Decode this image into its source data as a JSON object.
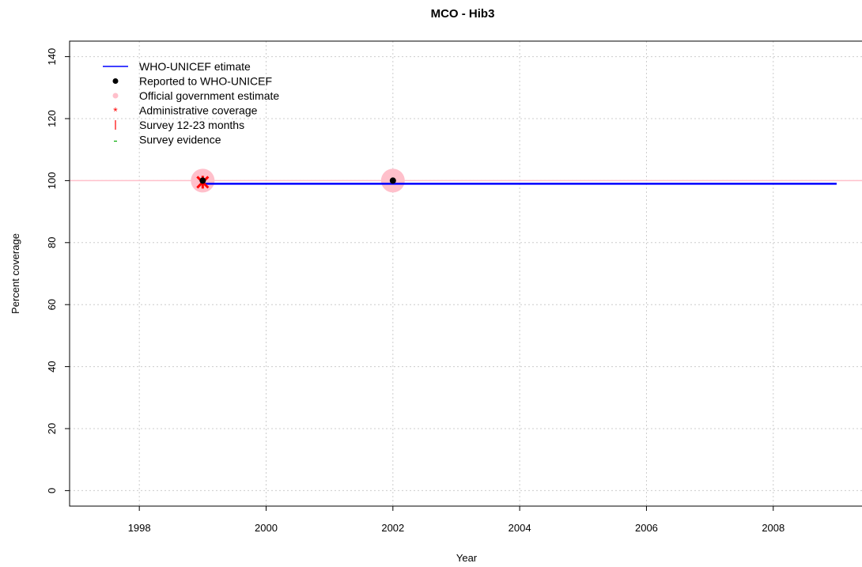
{
  "chart_data": {
    "type": "line",
    "title": "MCO  -  Hib3",
    "xlabel": "Year",
    "ylabel": "Percent coverage",
    "xlim": [
      1996.9,
      2009.4
    ],
    "ylim": [
      -5,
      145
    ],
    "xticks": [
      1998,
      2000,
      2002,
      2004,
      2006,
      2008
    ],
    "yticks": [
      0,
      20,
      40,
      60,
      80,
      100,
      120,
      140
    ],
    "xtick_labels": [
      "1998",
      "2000",
      "2002",
      "2004",
      "2006",
      "2008"
    ],
    "ytick_labels": [
      "0",
      "20",
      "40",
      "60",
      "80",
      "100",
      "120",
      "140"
    ],
    "grid": true,
    "legend_position": "top-left",
    "reference_line": {
      "y": 100,
      "color": "#ffc0cb"
    },
    "series": [
      {
        "name": "WHO-UNICEF etimate",
        "kind": "line",
        "color": "#0000ff",
        "points": [
          [
            1999,
            99
          ],
          [
            2000,
            99
          ],
          [
            2001,
            99
          ],
          [
            2002,
            99
          ],
          [
            2003,
            99
          ],
          [
            2004,
            99
          ],
          [
            2005,
            99
          ],
          [
            2006,
            99
          ],
          [
            2007,
            99
          ],
          [
            2008,
            99
          ],
          [
            2009,
            99
          ]
        ]
      },
      {
        "name": "Reported to WHO-UNICEF",
        "kind": "point",
        "color": "#000000",
        "points": [
          [
            1999,
            100
          ],
          [
            2002,
            100
          ]
        ]
      },
      {
        "name": "Official government estimate",
        "kind": "circle",
        "color": "#ffc0cb",
        "points": [
          [
            1999,
            100
          ],
          [
            2002,
            100
          ]
        ]
      },
      {
        "name": "Administrative coverage",
        "kind": "asterisk",
        "color": "#ff0000",
        "points": [
          [
            1999,
            100
          ]
        ]
      },
      {
        "name": "Survey 12-23 months",
        "kind": "bar-mark",
        "color": "#ff0000",
        "points": []
      },
      {
        "name": "Survey evidence",
        "kind": "dash-mark",
        "color": "#00aa00",
        "points": []
      }
    ]
  }
}
